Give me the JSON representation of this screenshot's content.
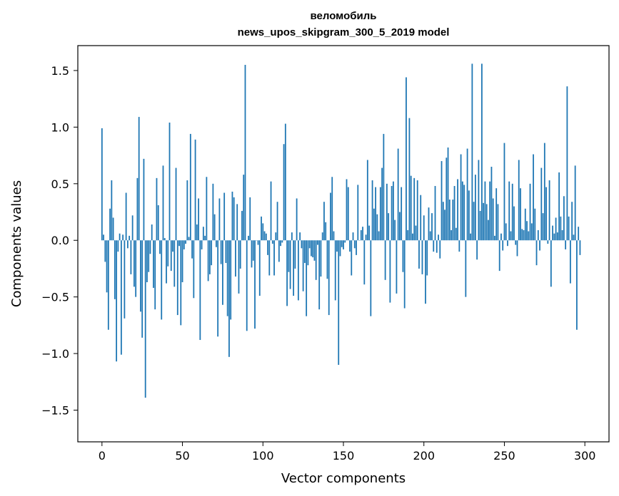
{
  "chart_data": {
    "type": "bar",
    "title": "веломобиль",
    "subtitle": "news_upos_skipgram_300_5_2019 model",
    "xlabel": "Vector components",
    "ylabel": "Components values",
    "xlim": [
      -15,
      315
    ],
    "ylim": [
      -1.78,
      1.72
    ],
    "xticks": [
      0,
      50,
      100,
      150,
      200,
      250,
      300
    ],
    "yticks": [
      1.5,
      1.0,
      0.5,
      0.0,
      -0.5,
      -1.0,
      -1.5
    ],
    "ytick_labels": [
      "1.5",
      "1.0",
      "0.5",
      "0.0",
      "−0.5",
      "−1.0",
      "−1.5"
    ],
    "bar_color": "#1f77b4",
    "grid": false,
    "values": [
      0.99,
      0.05,
      -0.19,
      -0.46,
      -0.79,
      0.28,
      0.53,
      0.2,
      -0.52,
      -1.07,
      -0.1,
      0.06,
      -1.01,
      0.05,
      -0.69,
      0.42,
      -0.07,
      0.04,
      -0.3,
      0.22,
      -0.41,
      -0.5,
      0.55,
      1.09,
      -0.63,
      -0.86,
      0.72,
      -1.39,
      -0.37,
      -0.28,
      -0.12,
      0.14,
      -0.42,
      -0.61,
      0.55,
      0.31,
      -0.12,
      -0.7,
      0.66,
      0.02,
      -0.38,
      -0.23,
      1.04,
      -0.27,
      -0.1,
      -0.41,
      0.64,
      -0.66,
      -0.05,
      -0.75,
      -0.37,
      -0.08,
      -0.03,
      0.53,
      0.03,
      0.94,
      -0.16,
      -0.51,
      0.89,
      0.14,
      0.37,
      -0.88,
      -0.08,
      0.12,
      0.04,
      0.56,
      -0.36,
      -0.3,
      -0.22,
      0.5,
      0.23,
      -0.06,
      -0.85,
      0.37,
      -0.21,
      -0.57,
      0.42,
      -0.2,
      -0.67,
      -1.03,
      -0.7,
      0.43,
      0.38,
      -0.32,
      0.32,
      -0.47,
      -0.25,
      0.26,
      0.58,
      1.55,
      -0.8,
      0.04,
      0.38,
      -0.24,
      -0.18,
      -0.78,
      0.0,
      -0.04,
      -0.49,
      0.21,
      0.15,
      0.08,
      0.06,
      -0.13,
      -0.31,
      0.52,
      -0.03,
      -0.31,
      0.07,
      0.34,
      -0.19,
      -0.05,
      -0.02,
      0.85,
      1.03,
      -0.58,
      -0.28,
      -0.43,
      0.07,
      -0.49,
      -0.25,
      0.37,
      -0.53,
      0.07,
      -0.07,
      -0.45,
      -0.2,
      -0.67,
      -0.22,
      -0.07,
      -0.14,
      -0.15,
      -0.18,
      -0.35,
      -0.04,
      -0.61,
      -0.32,
      0.07,
      0.34,
      0.16,
      -0.34,
      -0.66,
      0.42,
      0.56,
      0.08,
      -0.53,
      -0.1,
      -1.1,
      -0.14,
      -0.06,
      -0.08,
      -0.02,
      0.54,
      0.47,
      -0.1,
      -0.31,
      0.07,
      -0.07,
      -0.13,
      0.49,
      0.0,
      0.09,
      0.12,
      -0.39,
      0.05,
      0.71,
      0.13,
      -0.67,
      0.53,
      0.28,
      0.47,
      0.23,
      0.08,
      0.47,
      0.64,
      0.94,
      -0.35,
      0.5,
      0.24,
      -0.55,
      0.48,
      0.52,
      0.18,
      -0.47,
      0.81,
      0.25,
      0.47,
      -0.28,
      -0.6,
      1.44,
      0.09,
      1.08,
      0.57,
      0.06,
      0.55,
      0.13,
      0.53,
      -0.25,
      0.4,
      -0.3,
      0.22,
      -0.56,
      -0.31,
      0.29,
      0.08,
      0.24,
      -0.1,
      0.48,
      -0.11,
      0.05,
      -0.16,
      0.7,
      0.34,
      0.27,
      0.73,
      0.82,
      0.36,
      0.09,
      0.36,
      0.48,
      0.11,
      0.54,
      -0.1,
      0.76,
      0.52,
      0.49,
      -0.5,
      0.81,
      0.44,
      0.06,
      1.56,
      0.34,
      0.58,
      -0.17,
      0.71,
      0.26,
      1.56,
      0.33,
      0.52,
      0.32,
      0.18,
      0.52,
      0.65,
      0.37,
      0.04,
      0.46,
      0.32,
      -0.27,
      0.06,
      -0.09,
      0.86,
      0.15,
      -0.05,
      0.52,
      0.08,
      0.5,
      0.3,
      -0.04,
      -0.14,
      0.71,
      0.46,
      0.1,
      0.09,
      0.28,
      0.17,
      0.08,
      0.5,
      0.15,
      0.76,
      0.28,
      -0.22,
      0.09,
      -0.09,
      0.64,
      0.24,
      0.86,
      0.47,
      -0.03,
      0.53,
      -0.41,
      0.13,
      0.06,
      0.2,
      0.07,
      0.6,
      0.21,
      0.09,
      0.39,
      -0.08,
      1.36,
      0.21,
      -0.38,
      0.34,
      0.05,
      0.66,
      -0.79,
      0.12,
      -0.13
    ]
  }
}
